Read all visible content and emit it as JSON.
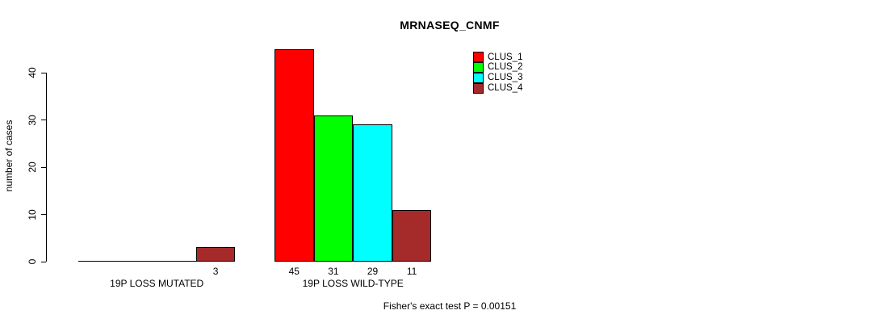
{
  "chart_data": {
    "type": "bar",
    "title": "MRNASEQ_CNMF",
    "ylabel": "number of cases",
    "xlabel": "",
    "ylim": [
      0,
      45
    ],
    "yticks": [
      0,
      10,
      20,
      30,
      40
    ],
    "grid": false,
    "legend_position": "top-right",
    "categories": [
      "19P LOSS MUTATED",
      "19P LOSS WILD-TYPE"
    ],
    "series": [
      {
        "name": "CLUS_1",
        "color": "#FF0000",
        "values": [
          0,
          45
        ]
      },
      {
        "name": "CLUS_2",
        "color": "#00FF00",
        "values": [
          0,
          31
        ]
      },
      {
        "name": "CLUS_3",
        "color": "#00FFFF",
        "values": [
          0,
          29
        ]
      },
      {
        "name": "CLUS_4",
        "color": "#A52A2A",
        "values": [
          3,
          11
        ]
      }
    ],
    "bar_labels": [
      [
        "",
        "",
        "",
        "3"
      ],
      [
        "45",
        "31",
        "29",
        "11"
      ]
    ],
    "annotation": "Fisher's exact test P = 0.00151"
  }
}
